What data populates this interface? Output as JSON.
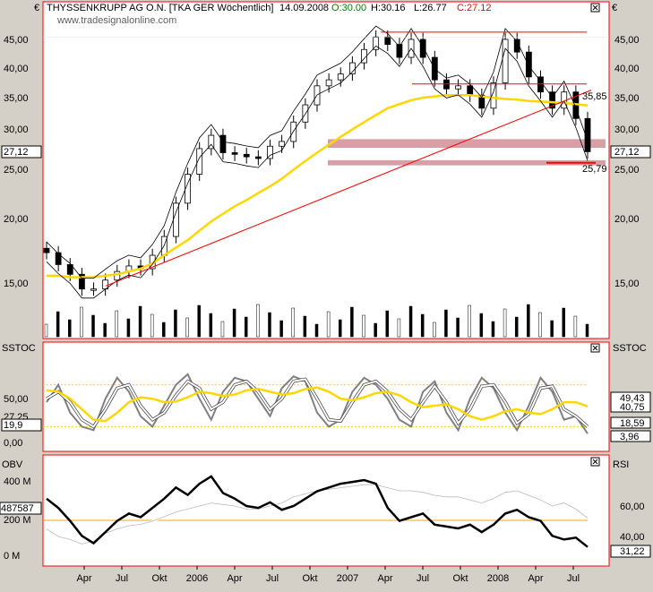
{
  "header": {
    "instrument": "THYSSENKRUPP AG O.N. [TKA GER  Wöchentlich]",
    "date": "14.09.2008",
    "open": "O:30.00",
    "high": "H:30.16",
    "low": "L:26.77",
    "close": "C:27.12",
    "website": "www.tradesignalonline.com",
    "currency_symbol": "€"
  },
  "colors": {
    "panel_border": "#ff0000",
    "ma_line": "#ffd700",
    "support_band": "#c87880",
    "candles": "#000000",
    "trend_line": "#ff0000"
  },
  "chart_data": [
    {
      "type": "line",
      "name": "price",
      "title": "",
      "y_ticks_left": [
        "45,00",
        "40,00",
        "35,00",
        "30,00",
        "27,12",
        "25,00",
        "20,00",
        "15,00"
      ],
      "y_ticks_right": [
        "45,00",
        "40,00",
        "35,00",
        "30,00",
        "27,12",
        "25,00",
        "20,00",
        "15,00"
      ],
      "ylim": [
        13,
        48
      ],
      "annotations": [
        "35,85",
        "25,79"
      ],
      "x_labels": [
        "Apr",
        "Jul",
        "Okt",
        "2006",
        "Apr",
        "Jul",
        "Okt",
        "2007",
        "Apr",
        "Jul",
        "Okt",
        "2008",
        "Apr",
        "Jul"
      ],
      "x_range": [
        "2005-01",
        "2008-09"
      ],
      "series": [
        {
          "values": [
            17.2,
            16.3,
            15.6,
            14.6,
            14.6,
            15.2,
            15.8,
            16.2,
            16.0,
            17.0,
            18.5,
            21.5,
            24.5,
            27.5,
            29.2,
            27.0,
            26.8,
            26.5,
            26.3,
            27.8,
            28.4,
            31.0,
            33.5,
            36.5,
            37.5,
            38.5,
            40.5,
            43.0,
            45.5,
            44.0,
            41.5,
            45.0,
            41.5,
            37.5,
            36.0,
            36.5,
            35.0,
            33.0,
            37.0,
            45.0,
            42.5,
            38.0,
            35.5,
            33.0,
            35.5,
            31.5,
            27.12
          ],
          "tick": 0
        },
        {
          "name": "moving average",
          "values": [
            15.5,
            15.5,
            15.4,
            15.4,
            15.4,
            15.5,
            15.6,
            15.8,
            16.0,
            16.4,
            17.0,
            17.6,
            18.2,
            19.0,
            19.8,
            20.5,
            21.2,
            21.8,
            22.5,
            23.2,
            24.0,
            25.0,
            26.0,
            27.0,
            28.0,
            29.0,
            30.0,
            31.0,
            32.0,
            33.0,
            33.6,
            34.2,
            34.6,
            34.8,
            35.0,
            35.0,
            35.0,
            34.8,
            34.6,
            34.4,
            34.3,
            34.1,
            34.0,
            33.9,
            33.8,
            33.6,
            33.4
          ]
        }
      ]
    },
    {
      "type": "line",
      "name": "SSTOC",
      "title": "",
      "y_ticks_left": [
        "50,00",
        "27,25",
        "19,9",
        "0,00"
      ],
      "y_tags_right": [
        "49,43",
        "40,75",
        "18,59",
        "3,96"
      ],
      "ylim": [
        -5,
        105
      ],
      "series": [
        {
          "name": "%K",
          "values": [
            55,
            80,
            40,
            20,
            15,
            60,
            90,
            70,
            35,
            20,
            50,
            80,
            95,
            60,
            30,
            70,
            90,
            85,
            60,
            35,
            75,
            92,
            85,
            40,
            20,
            30,
            70,
            90,
            80,
            60,
            30,
            20,
            70,
            85,
            40,
            15,
            60,
            90,
            75,
            40,
            15,
            50,
            90,
            70,
            30,
            35,
            10
          ]
        },
        {
          "name": "%D",
          "values": [
            60,
            70,
            55,
            30,
            20,
            45,
            75,
            80,
            50,
            30,
            40,
            65,
            85,
            75,
            45,
            55,
            80,
            85,
            70,
            45,
            60,
            85,
            88,
            60,
            30,
            28,
            55,
            80,
            85,
            70,
            45,
            30,
            55,
            78,
            55,
            25,
            45,
            78,
            80,
            55,
            25,
            38,
            75,
            78,
            45,
            35,
            20
          ]
        },
        {
          "name": "signal",
          "values": [
            72,
            70,
            60,
            45,
            30,
            28,
            40,
            55,
            62,
            60,
            55,
            56,
            62,
            70,
            68,
            64,
            66,
            72,
            74,
            70,
            66,
            68,
            74,
            76,
            70,
            60,
            58,
            62,
            68,
            70,
            65,
            55,
            48,
            50,
            52,
            45,
            35,
            30,
            35,
            42,
            45,
            40,
            38,
            45,
            55,
            55,
            49
          ]
        }
      ]
    },
    {
      "type": "line",
      "name": "OBV/RSI",
      "title": "",
      "y_ticks_left": [
        "400 M",
        "200 M",
        "0 M"
      ],
      "y_tag_left": "487587",
      "y_tags_right": [
        "60,00",
        "40,00",
        "31,22"
      ],
      "right_label": "RSI",
      "left_label": "OBV",
      "series": [
        {
          "name": "OBV",
          "values": [
            300,
            250,
            180,
            100,
            60,
            120,
            180,
            220,
            200,
            250,
            300,
            360,
            320,
            380,
            420,
            330,
            300,
            260,
            250,
            280,
            240,
            260,
            300,
            340,
            360,
            380,
            390,
            400,
            380,
            250,
            180,
            200,
            220,
            160,
            150,
            140,
            160,
            120,
            160,
            220,
            240,
            200,
            180,
            100,
            80,
            90,
            40
          ]
        },
        {
          "name": "RSI",
          "values": [
            45,
            40,
            38,
            35,
            37,
            42,
            45,
            47,
            48,
            50,
            53,
            56,
            58,
            60,
            62,
            61,
            60,
            58,
            58,
            60,
            62,
            66,
            68,
            70,
            71,
            72,
            73,
            74,
            74,
            72,
            70,
            70,
            69,
            67,
            66,
            66,
            64,
            62,
            65,
            69,
            70,
            67,
            64,
            60,
            62,
            58,
            52
          ]
        }
      ]
    }
  ],
  "panel_labels": {
    "stoch_left": "SSTOC",
    "stoch_right": "SSTOC"
  }
}
